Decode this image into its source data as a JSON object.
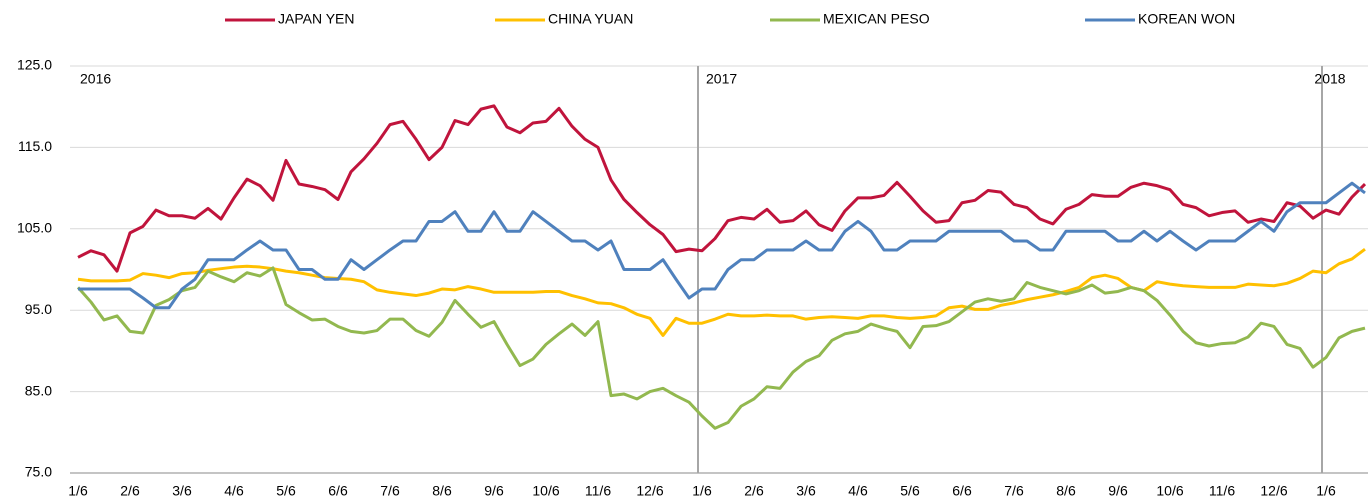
{
  "chart_data": {
    "type": "line",
    "annotations": [
      "2016",
      "2017",
      "2018"
    ],
    "categories": [
      "1/6",
      null,
      null,
      null,
      "2/6",
      null,
      null,
      null,
      "3/6",
      null,
      null,
      null,
      "4/6",
      null,
      null,
      null,
      "5/6",
      null,
      null,
      null,
      "6/6",
      null,
      null,
      null,
      "7/6",
      null,
      null,
      null,
      "8/6",
      null,
      null,
      null,
      "9/6",
      null,
      null,
      null,
      "10/6",
      null,
      null,
      null,
      "11/6",
      null,
      null,
      null,
      "12/6",
      null,
      null,
      null,
      "1/6",
      null,
      null,
      null,
      "2/6",
      null,
      null,
      null,
      "3/6",
      null,
      null,
      null,
      "4/6",
      null,
      null,
      null,
      "5/6",
      null,
      null,
      null,
      "6/6",
      null,
      null,
      null,
      "7/6",
      null,
      null,
      null,
      "8/6",
      null,
      null,
      null,
      "9/6",
      null,
      null,
      null,
      "10/6",
      null,
      null,
      null,
      "11/6",
      null,
      null,
      null,
      "12/6",
      null,
      null,
      null,
      "1/6",
      null,
      null,
      null
    ],
    "series": [
      {
        "name": "JAPAN YEN",
        "color": "#c0143c",
        "values": [
          101.5,
          102.3,
          101.8,
          99.8,
          104.5,
          105.3,
          107.3,
          106.6,
          106.6,
          106.3,
          107.5,
          106.2,
          108.8,
          111.1,
          110.3,
          108.5,
          113.4,
          110.5,
          110.2,
          109.8,
          108.6,
          112,
          113.6,
          115.5,
          117.8,
          118.2,
          116,
          113.5,
          115,
          118.3,
          117.8,
          119.7,
          120.1,
          117.5,
          116.8,
          118,
          118.2,
          119.8,
          117.6,
          116,
          115,
          111,
          108.6,
          107,
          105.5,
          104.3,
          102.2,
          102.5,
          102.3,
          103.8,
          106,
          106.4,
          106.2,
          107.4,
          105.8,
          106,
          107.2,
          105.5,
          104.8,
          107.2,
          108.8,
          108.8,
          109.1,
          110.7,
          109,
          107.2,
          105.8,
          106,
          108.2,
          108.5,
          109.7,
          109.5,
          108,
          107.6,
          106.2,
          105.6,
          107.4,
          108,
          109.2,
          109,
          109,
          110.1,
          110.6,
          110.3,
          109.8,
          108,
          107.6,
          106.6,
          107,
          107.2,
          105.8,
          106.2,
          105.9,
          108.2,
          107.8,
          106.3,
          107.3,
          106.8,
          108.9,
          110.5
        ]
      },
      {
        "name": "CHINA YUAN",
        "color": "#ffc000",
        "values": [
          98.8,
          98.6,
          98.6,
          98.6,
          98.7,
          99.5,
          99.3,
          99,
          99.5,
          99.6,
          99.9,
          100.1,
          100.3,
          100.4,
          100.3,
          100.1,
          99.8,
          99.6,
          99.3,
          99,
          98.9,
          98.8,
          98.5,
          97.5,
          97.2,
          97,
          96.8,
          97.1,
          97.6,
          97.5,
          97.9,
          97.6,
          97.2,
          97.2,
          97.2,
          97.2,
          97.3,
          97.3,
          96.8,
          96.4,
          95.9,
          95.8,
          95.3,
          94.5,
          94,
          91.9,
          94,
          93.4,
          93.4,
          93.9,
          94.5,
          94.3,
          94.3,
          94.4,
          94.3,
          94.3,
          93.9,
          94.1,
          94.2,
          94.1,
          94,
          94.3,
          94.3,
          94.1,
          94,
          94.1,
          94.3,
          95.3,
          95.5,
          95.1,
          95.1,
          95.6,
          95.9,
          96.3,
          96.6,
          96.9,
          97.3,
          97.8,
          99,
          99.3,
          98.9,
          97.8,
          97.4,
          98.5,
          98.2,
          98,
          97.9,
          97.8,
          97.8,
          97.8,
          98.2,
          98.1,
          98,
          98.3,
          98.9,
          99.8,
          99.6,
          100.7,
          101.3,
          102.5
        ]
      },
      {
        "name": "MEXICAN PESO",
        "color": "#92b84f",
        "values": [
          97.8,
          96,
          93.8,
          94.3,
          92.4,
          92.2,
          95.6,
          96.3,
          97.4,
          97.8,
          99.8,
          99.1,
          98.5,
          99.6,
          99.2,
          100.2,
          95.7,
          94.7,
          93.8,
          93.9,
          93,
          92.4,
          92.2,
          92.5,
          93.9,
          93.9,
          92.5,
          91.8,
          93.5,
          96.2,
          94.5,
          92.9,
          93.6,
          90.8,
          88.2,
          89,
          90.8,
          92.1,
          93.3,
          91.9,
          93.6,
          84.5,
          84.7,
          84.1,
          85,
          85.4,
          84.5,
          83.7,
          82,
          80.5,
          81.2,
          83.2,
          84.1,
          85.6,
          85.4,
          87.4,
          88.7,
          89.4,
          91.3,
          92.1,
          92.4,
          93.3,
          92.8,
          92.4,
          90.4,
          93,
          93.1,
          93.6,
          94.8,
          96,
          96.4,
          96.1,
          96.4,
          98.4,
          97.8,
          97.4,
          97,
          97.4,
          98.1,
          97.1,
          97.3,
          97.8,
          97.4,
          96.2,
          94.4,
          92.4,
          91,
          90.6,
          90.9,
          91,
          91.7,
          93.4,
          93,
          90.8,
          90.3,
          88,
          89.2,
          91.6,
          92.4,
          92.8
        ]
      },
      {
        "name": "KOREAN WON",
        "color": "#4f81bd",
        "values": [
          97.6,
          97.6,
          97.6,
          97.6,
          97.6,
          96.5,
          95.3,
          95.3,
          97.6,
          98.8,
          101.2,
          101.2,
          101.2,
          102.4,
          103.5,
          102.4,
          102.4,
          100,
          100,
          98.8,
          98.8,
          101.2,
          100,
          101.2,
          102.4,
          103.5,
          103.5,
          105.9,
          105.9,
          107.1,
          104.7,
          104.7,
          107.1,
          104.7,
          104.7,
          107.1,
          105.9,
          104.7,
          103.5,
          103.5,
          102.4,
          103.5,
          100,
          100,
          100,
          101.2,
          98.8,
          96.5,
          97.6,
          97.6,
          100,
          101.2,
          101.2,
          102.4,
          102.4,
          102.4,
          103.5,
          102.4,
          102.4,
          104.7,
          105.9,
          104.7,
          102.4,
          102.4,
          103.5,
          103.5,
          103.5,
          104.7,
          104.7,
          104.7,
          104.7,
          104.7,
          103.5,
          103.5,
          102.4,
          102.4,
          104.7,
          104.7,
          104.7,
          104.7,
          103.5,
          103.5,
          104.7,
          103.5,
          104.7,
          103.5,
          102.4,
          103.5,
          103.5,
          103.5,
          104.7,
          105.9,
          104.7,
          107.1,
          108.2,
          108.2,
          108.2,
          109.4,
          110.6,
          109.4
        ]
      }
    ],
    "ylim": [
      75,
      125
    ],
    "yticks": [
      {
        "value": 75,
        "label": "75.0"
      },
      {
        "value": 85,
        "label": "85.0"
      },
      {
        "value": 95,
        "label": "95.0"
      },
      {
        "value": 105,
        "label": "105.0"
      },
      {
        "value": 115,
        "label": "115.0"
      },
      {
        "value": 125,
        "label": "125.0"
      }
    ],
    "grid": true,
    "legend": "top"
  }
}
